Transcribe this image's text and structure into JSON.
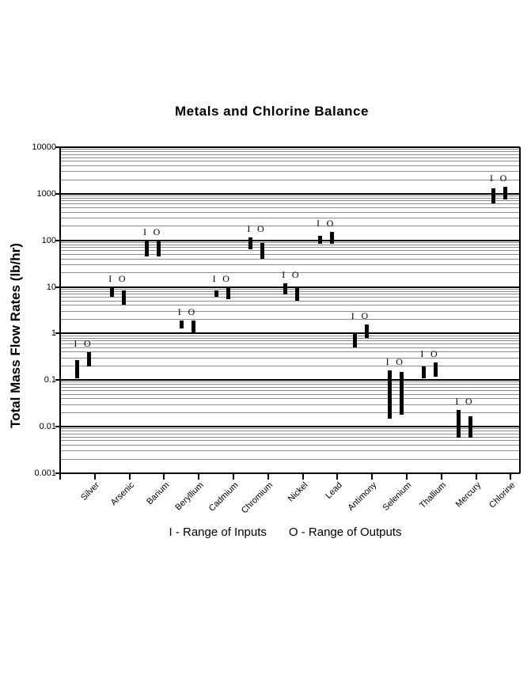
{
  "chart_data": {
    "type": "bar",
    "subtype": "floating-range-columns",
    "title": "Metals and Chlorine Balance",
    "ylabel": "Total Mass Flow Rates (lb/hr)",
    "xlabel": "",
    "y_scale": "log",
    "ylim": [
      0.001,
      10000
    ],
    "y_tick_labels": [
      "10000",
      "1000",
      "100",
      "10",
      "1",
      "0.1",
      "0.01",
      "0.001"
    ],
    "grid": "major black + minor gray log gridlines",
    "legend_position": "bottom",
    "legend": {
      "input_label": "I - Range of Inputs",
      "output_label": "O - Range of Outputs"
    },
    "categories": [
      "Silver",
      "Arsenic",
      "Barium",
      "Beryllium",
      "Cadmium",
      "Chromium",
      "Nickel",
      "Lead",
      "Antimony",
      "Selenium",
      "Thallium",
      "Mercury",
      "Chlorine"
    ],
    "series": [
      {
        "name": "I",
        "meaning": "Range of Inputs",
        "ranges": [
          [
            0.11,
            0.27
          ],
          [
            6.2,
            9.9
          ],
          [
            46,
            95
          ],
          [
            1.3,
            1.9
          ],
          [
            6.2,
            8.4
          ],
          [
            64,
            116
          ],
          [
            6.9,
            12
          ],
          [
            84,
            125
          ],
          [
            0.51,
            1.0
          ],
          [
            0.015,
            0.16
          ],
          [
            0.11,
            0.2
          ],
          [
            0.0058,
            0.023
          ],
          [
            620,
            1310
          ]
        ]
      },
      {
        "name": "O",
        "meaning": "Range of Outputs",
        "ranges": [
          [
            0.2,
            0.4
          ],
          [
            4.2,
            8.4
          ],
          [
            46,
            97
          ],
          [
            1.0,
            1.9
          ],
          [
            5.5,
            9.9
          ],
          [
            40,
            88
          ],
          [
            5.1,
            9.9
          ],
          [
            84,
            152
          ],
          [
            0.79,
            1.56
          ],
          [
            0.018,
            0.15
          ],
          [
            0.12,
            0.24
          ],
          [
            0.0058,
            0.017
          ],
          [
            760,
            1420
          ]
        ]
      }
    ],
    "colors": {
      "bar": "#000000",
      "major_gridline": "#000000",
      "minor_gridline": "#8c8c8c",
      "text": "#000000",
      "background": "#ffffff"
    }
  }
}
